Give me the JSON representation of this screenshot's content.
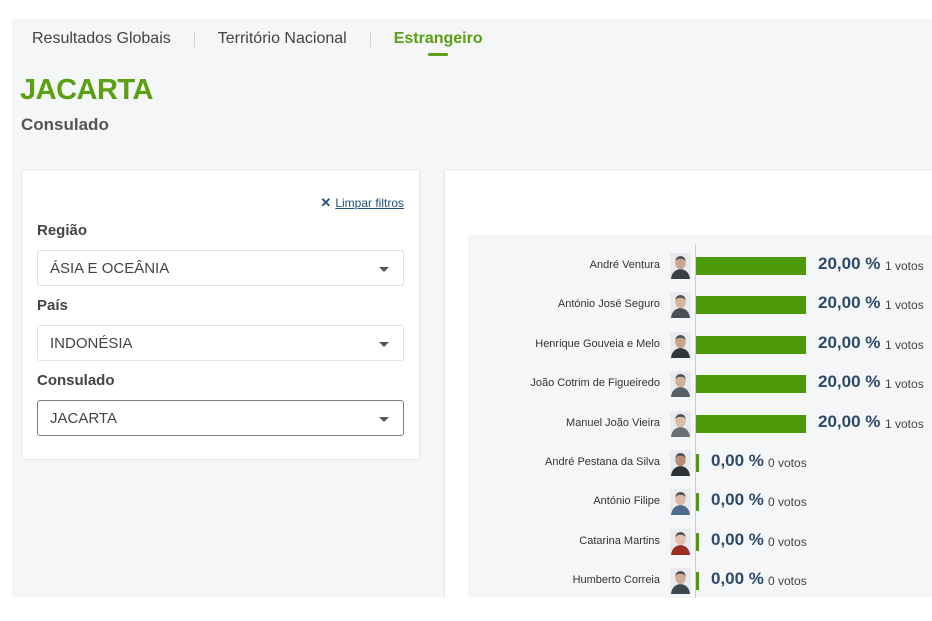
{
  "tabs": [
    {
      "label": "Resultados Globais",
      "active": false
    },
    {
      "label": "Território Nacional",
      "active": false
    },
    {
      "label": "Estrangeiro",
      "active": true
    }
  ],
  "header": {
    "title": "JACARTA",
    "subtitle": "Consulado"
  },
  "filters": {
    "clear_label": "Limpar filtros",
    "region": {
      "label": "Região",
      "value": "ÁSIA E OCEÂNIA"
    },
    "country": {
      "label": "País",
      "value": "INDONÉSIA"
    },
    "consulate": {
      "label": "Consulado",
      "value": "JACARTA"
    }
  },
  "colors": {
    "accent": "#5aa010",
    "bar": "#4e9a06",
    "pct_text": "#2d4a6a"
  },
  "candidates": [
    {
      "name": "André Ventura",
      "pct": "20,00 %",
      "votes": "1 votos",
      "share": 20
    },
    {
      "name": "António José Seguro",
      "pct": "20,00 %",
      "votes": "1 votos",
      "share": 20
    },
    {
      "name": "Henrique Gouveia e Melo",
      "pct": "20,00 %",
      "votes": "1 votos",
      "share": 20
    },
    {
      "name": "João Cotrim de Figueiredo",
      "pct": "20,00 %",
      "votes": "1 votos",
      "share": 20
    },
    {
      "name": "Manuel João Vieira",
      "pct": "20,00 %",
      "votes": "1 votos",
      "share": 20
    },
    {
      "name": "André Pestana da Silva",
      "pct": "0,00 %",
      "votes": "0 votos",
      "share": 0
    },
    {
      "name": "António Filipe",
      "pct": "0,00 %",
      "votes": "0 votos",
      "share": 0
    },
    {
      "name": "Catarina Martins",
      "pct": "0,00 %",
      "votes": "0 votos",
      "share": 0
    },
    {
      "name": "Humberto Correia",
      "pct": "0,00 %",
      "votes": "0 votos",
      "share": 0
    }
  ]
}
